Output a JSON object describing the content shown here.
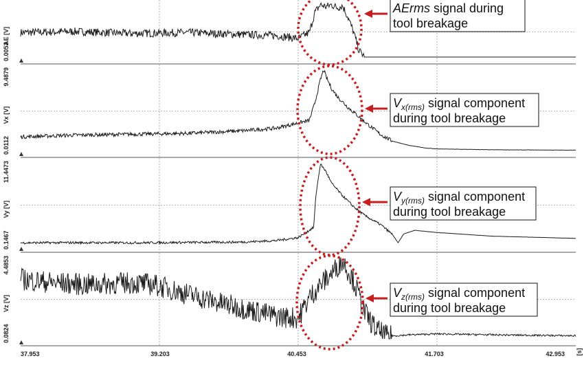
{
  "chart_data": {
    "type": "line",
    "x_unit": "[s]",
    "x_range": [
      37.953,
      42.953
    ],
    "x_ticks": [
      "37.953",
      "39.203",
      "40.453",
      "41.703",
      "42.953"
    ],
    "panels": [
      {
        "ylabel": "AE [V]",
        "ymin_label": "0.0053",
        "ymax_label": "",
        "ylim": [
          0.0053,
          0.06
        ],
        "series": {
          "name": "",
          "x": [
            37.953,
            38.453,
            38.953,
            39.453,
            39.953,
            40.253,
            40.453,
            40.553,
            40.603,
            40.653,
            40.703,
            40.753,
            40.803,
            40.853,
            40.903,
            40.953,
            41.0,
            41.053,
            41.203,
            41.453,
            41.703,
            42.203,
            42.953
          ],
          "y": [
            0.03,
            0.031,
            0.029,
            0.03,
            0.028,
            0.027,
            0.024,
            0.03,
            0.05,
            0.058,
            0.056,
            0.058,
            0.055,
            0.057,
            0.045,
            0.03,
            0.012,
            0.0053,
            0.0053,
            0.0053,
            0.0053,
            0.0053,
            0.0053
          ],
          "noise": 0.004
        },
        "annotation": {
          "prefix": "",
          "symbol": "AErms",
          "sub": "",
          "rest": " signal during",
          "line2": "tool breakage"
        }
      },
      {
        "ylabel": "Vx [V]",
        "ymin_label": "0.0112",
        "ymax_label": "9.4879",
        "ylim": [
          0.0112,
          9.4879
        ],
        "series": {
          "name": "",
          "x": [
            37.953,
            38.453,
            38.953,
            39.453,
            39.953,
            40.253,
            40.453,
            40.553,
            40.603,
            40.653,
            40.683,
            40.703,
            40.753,
            40.803,
            40.903,
            41.003,
            41.103,
            41.203,
            41.303,
            41.453,
            41.603,
            41.703,
            42.203,
            42.953
          ],
          "y": [
            1.6,
            1.8,
            1.9,
            2.0,
            2.3,
            2.6,
            3.2,
            3.5,
            5.5,
            8.2,
            9.4,
            8.6,
            7.2,
            6.3,
            5.0,
            3.9,
            2.8,
            1.8,
            1.1,
            0.6,
            0.3,
            0.2,
            0.1,
            0.05
          ],
          "noise": 0.22
        },
        "annotation": {
          "prefix": "",
          "symbol": "V",
          "sub": "x(rms)",
          "rest": " signal component",
          "line2": "during tool breakage"
        }
      },
      {
        "ylabel": "Vy [V]",
        "ymin_label": "0.1467",
        "ymax_label": "11.4473",
        "ylim": [
          0.1467,
          11.4473
        ],
        "series": {
          "name": "",
          "x": [
            37.953,
            38.453,
            38.953,
            39.453,
            39.953,
            40.253,
            40.453,
            40.553,
            40.593,
            40.613,
            40.653,
            40.703,
            40.753,
            40.853,
            40.953,
            41.053,
            41.203,
            41.303,
            41.353,
            41.403,
            41.503,
            41.703,
            42.203,
            42.953
          ],
          "y": [
            0.5,
            0.52,
            0.5,
            0.55,
            0.6,
            0.8,
            1.2,
            2.2,
            2.6,
            7.0,
            11.2,
            10.2,
            8.6,
            6.9,
            5.4,
            4.2,
            2.9,
            1.6,
            0.5,
            1.7,
            2.2,
            1.9,
            1.4,
            1.1
          ],
          "noise": 0.16
        },
        "annotation": {
          "prefix": "",
          "symbol": "V",
          "sub": "y(rms)",
          "rest": " signal component",
          "line2": "during tool breakage"
        }
      },
      {
        "ylabel": "Vz [V]",
        "ymin_label": "0.0824",
        "ymax_label": "4.4853",
        "ylim": [
          0.0824,
          4.4853
        ],
        "series": {
          "name": "",
          "x": [
            37.953,
            38.253,
            38.553,
            38.953,
            39.153,
            39.453,
            39.753,
            40.053,
            40.253,
            40.453,
            40.553,
            40.653,
            40.753,
            40.853,
            40.953,
            41.053,
            41.153,
            41.253,
            41.453,
            41.703,
            42.203,
            42.953
          ],
          "y": [
            3.3,
            3.1,
            3.0,
            3.1,
            3.0,
            2.5,
            2.0,
            1.6,
            1.3,
            1.2,
            2.3,
            3.0,
            3.6,
            4.3,
            3.2,
            1.5,
            0.6,
            0.22,
            0.3,
            0.35,
            0.3,
            0.25
          ],
          "noise": 0.6
        },
        "annotation": {
          "prefix": "",
          "symbol": "V",
          "sub": "z(rms)",
          "rest": " signal component",
          "line2": "during tool breakage"
        }
      }
    ]
  },
  "colors": {
    "signal": "#1a1a1a",
    "grid": "#9a9a9a",
    "marker": "#c41e1e"
  }
}
